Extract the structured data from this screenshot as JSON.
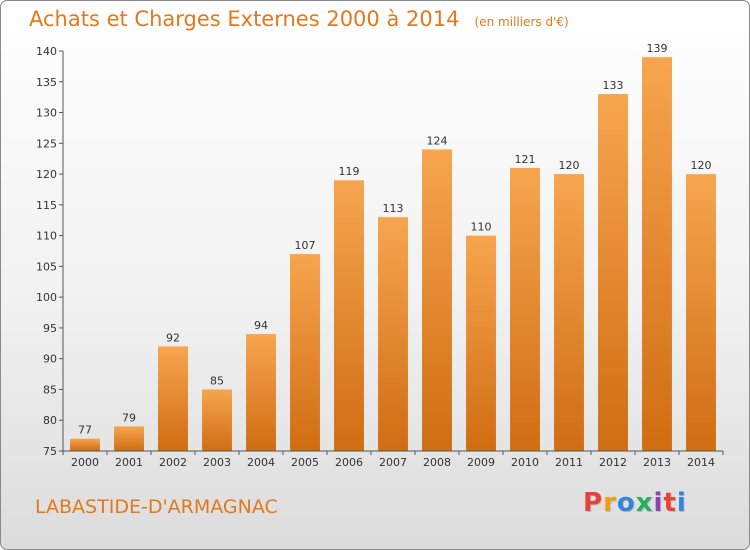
{
  "chart_data": {
    "type": "bar",
    "title": "Achats et Charges Externes 2000 à 2014",
    "unit": "(en milliers d'€)",
    "xlabel": "",
    "ylabel": "",
    "categories": [
      "2000",
      "2001",
      "2002",
      "2003",
      "2004",
      "2005",
      "2006",
      "2007",
      "2008",
      "2009",
      "2010",
      "2011",
      "2012",
      "2013",
      "2014"
    ],
    "values": [
      77,
      79,
      92,
      85,
      94,
      107,
      119,
      113,
      124,
      110,
      121,
      120,
      133,
      139,
      120
    ],
    "ylim": [
      75,
      140
    ],
    "yticks": [
      "75",
      "80",
      "85",
      "90",
      "95",
      "100",
      "105",
      "110",
      "115",
      "120",
      "125",
      "130",
      "135",
      "140"
    ],
    "grid": false,
    "legend": "none"
  },
  "footer": {
    "commune": "LABASTIDE-D'ARMAGNAC",
    "brand": "Proxiti"
  },
  "colors": {
    "title": "#e07a1d",
    "bar_top": "#f7a54f",
    "bar_bottom": "#d06d12",
    "axis": "#555555",
    "logo": [
      "#e8403a",
      "#f39c12",
      "#2e86de",
      "#27ae60",
      "#8e44ad",
      "#e8403a",
      "#2e86de"
    ]
  }
}
